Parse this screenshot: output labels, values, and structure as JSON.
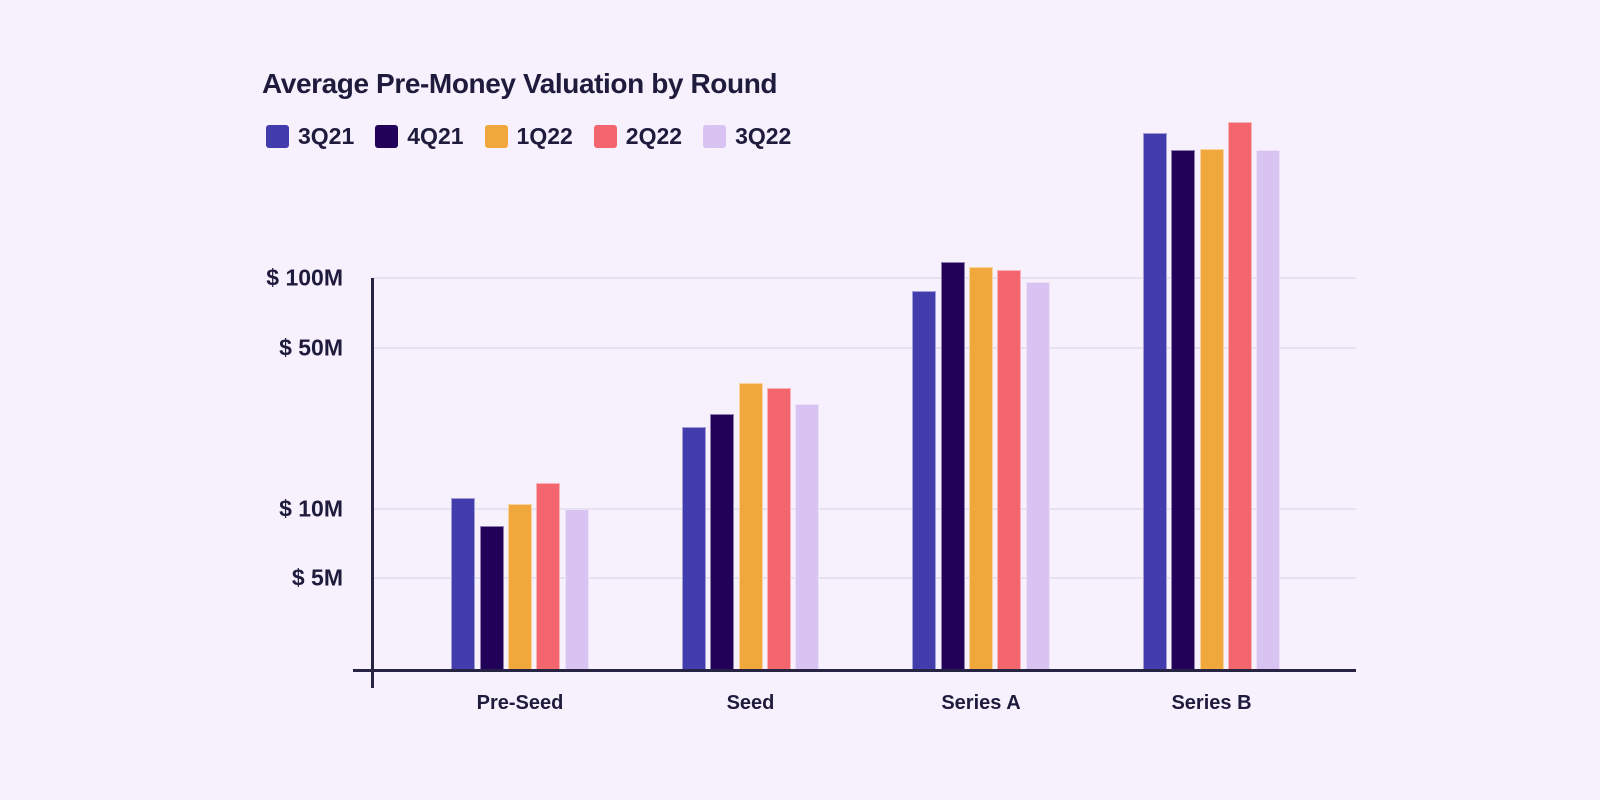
{
  "chart_data": {
    "type": "bar",
    "title": "Average Pre-Money Valuation by Round",
    "categories": [
      "Pre-Seed",
      "Seed",
      "Series A",
      "Series B"
    ],
    "series": [
      {
        "name": "3Q21",
        "color": "#423CAC",
        "values": [
          11.1,
          22.6,
          88,
          425
        ]
      },
      {
        "name": "4Q21",
        "color": "#220159",
        "values": [
          8.4,
          25.9,
          118,
          360
        ]
      },
      {
        "name": "1Q22",
        "color": "#F0A83C",
        "values": [
          10.5,
          35.2,
          112,
          365
        ]
      },
      {
        "name": "2Q22",
        "color": "#F4666E",
        "values": [
          12.9,
          33.4,
          109,
          475
        ]
      },
      {
        "name": "3Q22",
        "color": "#D8C3F2",
        "values": [
          10.0,
          28.5,
          96,
          360
        ]
      }
    ],
    "unit": "$M",
    "y_axis": {
      "scale": "log",
      "ticks": [
        {
          "label": "$ 100M",
          "value": 100
        },
        {
          "label": "$ 50M",
          "value": 50
        },
        {
          "label": "$ 10M",
          "value": 10
        },
        {
          "label": "$ 5M",
          "value": 5
        }
      ],
      "baseline_value": 2
    },
    "legend_position": "top",
    "grid": "horizontal"
  },
  "theme": {
    "background": "#F6F1FC",
    "text": "#1E1B3C",
    "axis": "#272343",
    "gridline": "#E4E2EF",
    "bar_stroke": "rgba(255,255,255,0.5)"
  }
}
